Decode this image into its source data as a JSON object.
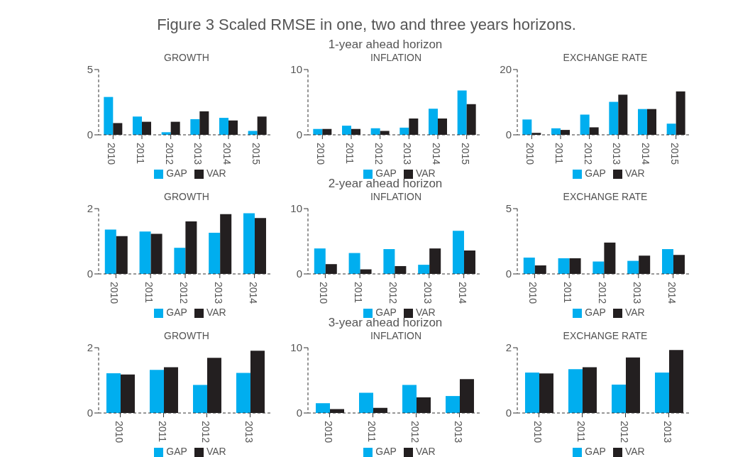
{
  "chart_data": [
    {
      "type": "other",
      "title": "Figure 3 Scaled RMSE in one, two and three years horizons."
    },
    {
      "type": "bar",
      "title": "GROWTH",
      "categories": [
        "2010",
        "2011",
        "2012",
        "2013",
        "2014",
        "2015"
      ],
      "ylim": [
        0,
        5
      ],
      "yticks": [
        0,
        5
      ],
      "grid": false,
      "legend": "bottom",
      "series": [
        {
          "name": "GAP",
          "color": "#00aeef",
          "values": [
            2.9,
            1.4,
            0.2,
            1.2,
            1.3,
            0.3
          ]
        },
        {
          "name": "VAR",
          "color": "#231f20",
          "values": [
            0.9,
            1.0,
            1.0,
            1.8,
            1.1,
            1.4
          ]
        }
      ]
    },
    {
      "type": "bar",
      "subtitle": "1-year ahead horizon",
      "title": "INFLATION",
      "categories": [
        "2010",
        "2011",
        "2012",
        "2013",
        "2014",
        "2015"
      ],
      "ylim": [
        0,
        10
      ],
      "yticks": [
        0,
        10
      ],
      "grid": false,
      "legend": "bottom",
      "series": [
        {
          "name": "GAP",
          "color": "#00aeef",
          "values": [
            0.9,
            1.4,
            1.0,
            1.1,
            4.0,
            6.8
          ]
        },
        {
          "name": "VAR",
          "color": "#231f20",
          "values": [
            0.9,
            0.9,
            0.6,
            2.5,
            2.5,
            4.7
          ]
        }
      ]
    },
    {
      "type": "bar",
      "title": "EXCHANGE RATE",
      "categories": [
        "2010",
        "2011",
        "2012",
        "2013",
        "2014",
        "2015"
      ],
      "ylim": [
        0,
        20
      ],
      "yticks": [
        0,
        20
      ],
      "grid": false,
      "legend": "bottom",
      "series": [
        {
          "name": "GAP",
          "color": "#00aeef",
          "values": [
            4.7,
            2.0,
            6.2,
            10.1,
            7.9,
            3.4
          ]
        },
        {
          "name": "VAR",
          "color": "#231f20",
          "values": [
            0.6,
            1.5,
            2.3,
            12.3,
            7.9,
            13.3
          ]
        }
      ]
    },
    {
      "type": "bar",
      "title": "GROWTH",
      "categories": [
        "2010",
        "2011",
        "2012",
        "2013",
        "2014"
      ],
      "ylim": [
        0,
        2
      ],
      "yticks": [
        0,
        2
      ],
      "grid": false,
      "legend": "bottom",
      "series": [
        {
          "name": "GAP",
          "color": "#00aeef",
          "values": [
            1.36,
            1.3,
            0.8,
            1.26,
            1.86
          ]
        },
        {
          "name": "VAR",
          "color": "#231f20",
          "values": [
            1.16,
            1.23,
            1.61,
            1.83,
            1.71
          ]
        }
      ]
    },
    {
      "type": "bar",
      "subtitle": "2-year ahead horizon",
      "title": "INFLATION",
      "categories": [
        "2010",
        "2011",
        "2012",
        "2013",
        "2014"
      ],
      "ylim": [
        0,
        10
      ],
      "yticks": [
        0,
        10
      ],
      "grid": false,
      "legend": "bottom",
      "series": [
        {
          "name": "GAP",
          "color": "#00aeef",
          "values": [
            3.9,
            3.2,
            3.8,
            1.4,
            6.6
          ]
        },
        {
          "name": "VAR",
          "color": "#231f20",
          "values": [
            1.5,
            0.7,
            1.2,
            3.9,
            3.6
          ]
        }
      ]
    },
    {
      "type": "bar",
      "title": "EXCHANGE RATE",
      "categories": [
        "2010",
        "2011",
        "2012",
        "2013",
        "2014"
      ],
      "ylim": [
        0,
        5
      ],
      "yticks": [
        0,
        5
      ],
      "grid": false,
      "legend": "bottom",
      "series": [
        {
          "name": "GAP",
          "color": "#00aeef",
          "values": [
            1.25,
            1.2,
            0.95,
            1.0,
            1.9
          ]
        },
        {
          "name": "VAR",
          "color": "#231f20",
          "values": [
            0.65,
            1.2,
            2.4,
            1.4,
            1.45
          ]
        }
      ]
    },
    {
      "type": "bar",
      "title": "GROWTH",
      "categories": [
        "2010",
        "2011",
        "2012",
        "2013"
      ],
      "ylim": [
        0,
        2
      ],
      "yticks": [
        0,
        2
      ],
      "grid": false,
      "legend": "bottom",
      "series": [
        {
          "name": "GAP",
          "color": "#00aeef",
          "values": [
            1.22,
            1.32,
            0.86,
            1.23
          ]
        },
        {
          "name": "VAR",
          "color": "#231f20",
          "values": [
            1.18,
            1.4,
            1.69,
            1.91
          ]
        }
      ]
    },
    {
      "type": "bar",
      "subtitle": "3-year ahead horizon",
      "title": "INFLATION",
      "categories": [
        "2010",
        "2011",
        "2012",
        "2013"
      ],
      "ylim": [
        0,
        10
      ],
      "yticks": [
        0,
        10
      ],
      "grid": false,
      "legend": "bottom",
      "series": [
        {
          "name": "GAP",
          "color": "#00aeef",
          "values": [
            1.5,
            3.1,
            4.3,
            2.6
          ]
        },
        {
          "name": "VAR",
          "color": "#231f20",
          "values": [
            0.6,
            0.8,
            2.4,
            5.2
          ]
        }
      ]
    },
    {
      "type": "bar",
      "title": "EXCHANGE RATE",
      "categories": [
        "2010",
        "2011",
        "2012",
        "2013"
      ],
      "ylim": [
        0,
        2
      ],
      "yticks": [
        0,
        2
      ],
      "grid": false,
      "legend": "bottom",
      "series": [
        {
          "name": "GAP",
          "color": "#00aeef",
          "values": [
            1.24,
            1.34,
            0.87,
            1.24
          ]
        },
        {
          "name": "VAR",
          "color": "#231f20",
          "values": [
            1.21,
            1.4,
            1.7,
            1.93
          ]
        }
      ]
    }
  ]
}
